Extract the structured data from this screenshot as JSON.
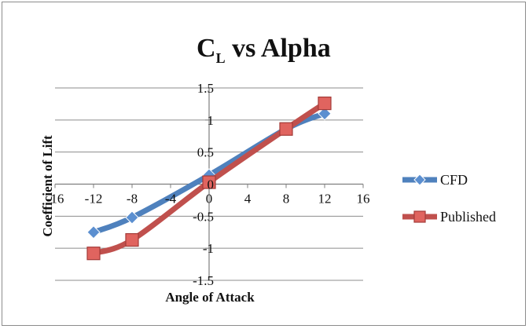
{
  "chart_data": {
    "type": "line",
    "title": "C",
    "title_subscript": "L",
    "title_rest": " vs Alpha",
    "xlabel": "Angle of Attack",
    "ylabel": "Coefficient of Lift",
    "xlim": [
      -16,
      16
    ],
    "ylim": [
      -1.5,
      1.5
    ],
    "xticks": [
      -16,
      -12,
      -8,
      -4,
      0,
      4,
      8,
      12,
      16
    ],
    "yticks": [
      -1.5,
      -1,
      -0.5,
      0,
      0.5,
      1,
      1.5
    ],
    "xtick_labels": [
      "-16",
      "-12",
      "-8",
      "-4",
      "0",
      "4",
      "8",
      "12",
      "16"
    ],
    "ytick_labels": [
      "-1.5",
      "-1",
      "-0.5",
      "0",
      "0.5",
      "1",
      "1.5"
    ],
    "grid": true,
    "legend_position": "right",
    "series": [
      {
        "name": "CFD",
        "color": "#4f81bd",
        "marker": "diamond",
        "x": [
          -12,
          -8,
          0,
          8,
          12
        ],
        "values": [
          -0.75,
          -0.52,
          0.14,
          0.86,
          1.1
        ]
      },
      {
        "name": "Published",
        "color": "#c0504d",
        "marker": "square",
        "x": [
          -12,
          -8,
          0,
          8,
          12
        ],
        "values": [
          -1.08,
          -0.87,
          0.03,
          0.86,
          1.26
        ]
      }
    ]
  }
}
